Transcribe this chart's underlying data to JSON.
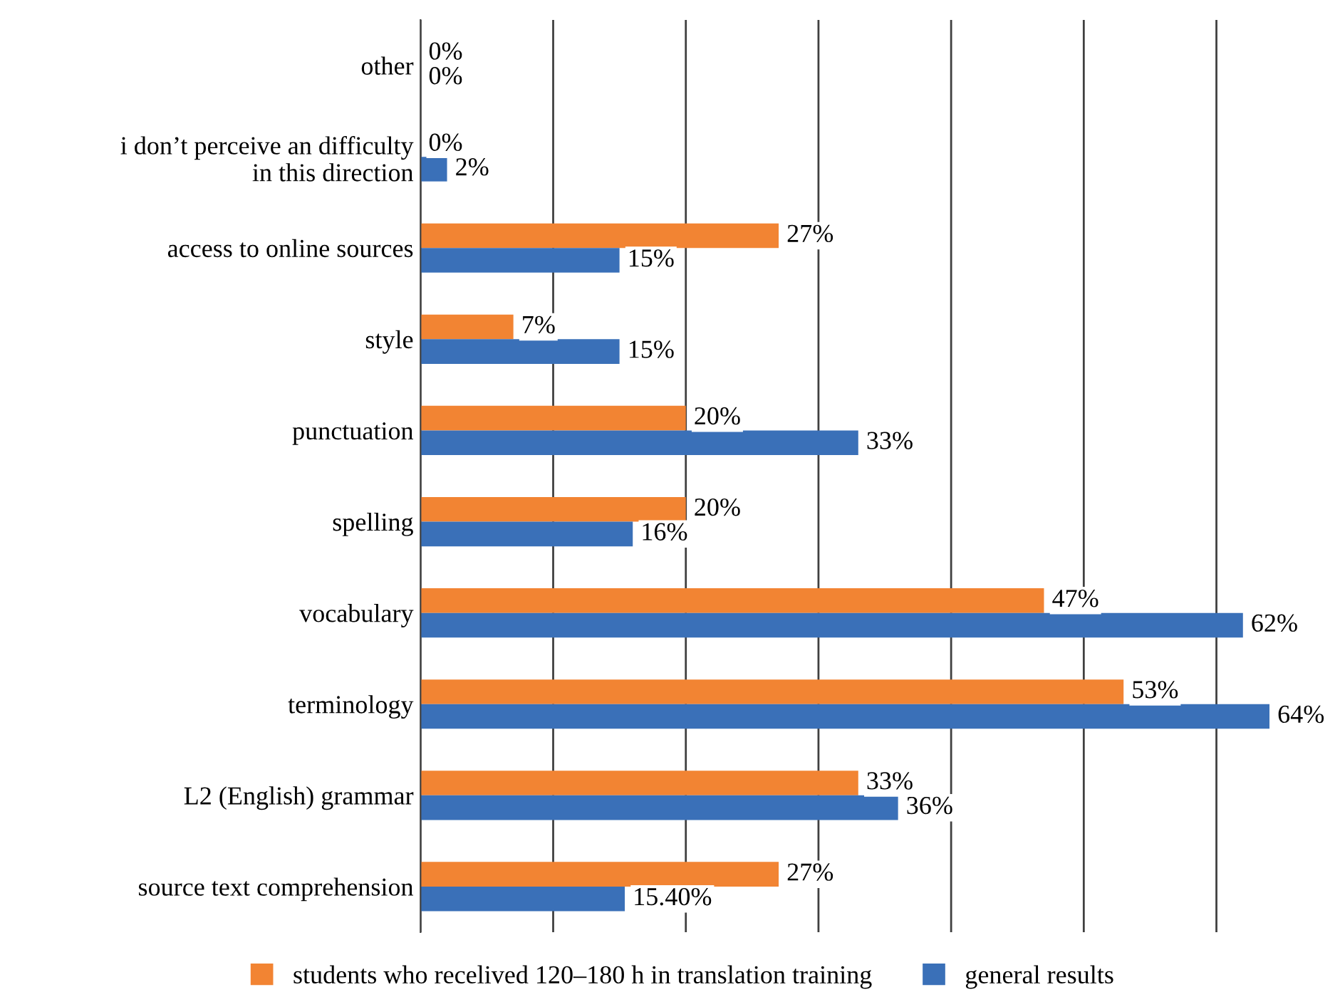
{
  "chart_data": {
    "type": "bar",
    "orientation": "horizontal",
    "categories": [
      "other",
      "i don’t perceive an difficulty\nin this direction",
      "access to online sources",
      "style",
      "punctuation",
      "spelling",
      "vocabulary",
      "terminology",
      "L2 (English) grammar",
      "source text comprehension"
    ],
    "series": [
      {
        "name": "students who recelived 120–180 h in translation training",
        "color": "#f28433",
        "values": [
          0,
          0,
          27,
          7,
          20,
          20,
          47,
          53,
          33,
          27
        ],
        "value_labels": [
          "0%",
          "0%",
          "27%",
          "7%",
          "20%",
          "20%",
          "47%",
          "53%",
          "33%",
          "27%"
        ]
      },
      {
        "name": "general results",
        "color": "#3a70b8",
        "values": [
          0,
          2,
          15,
          15,
          33,
          16,
          62,
          64,
          36,
          15.4
        ],
        "value_labels": [
          "0%",
          "2%",
          "15%",
          "15%",
          "33%",
          "16%",
          "62%",
          "64%",
          "36%",
          "15.40%"
        ]
      }
    ],
    "xticks": [
      {
        "value": 0,
        "label": null
      },
      {
        "value": 10,
        "label": null
      },
      {
        "value": 20,
        "label": null
      },
      {
        "value": 30,
        "label": null
      },
      {
        "value": 40,
        "label": null
      },
      {
        "value": 50,
        "label": null
      },
      {
        "value": 60,
        "label": null
      }
    ],
    "grid": "x",
    "legend": "bottom"
  }
}
